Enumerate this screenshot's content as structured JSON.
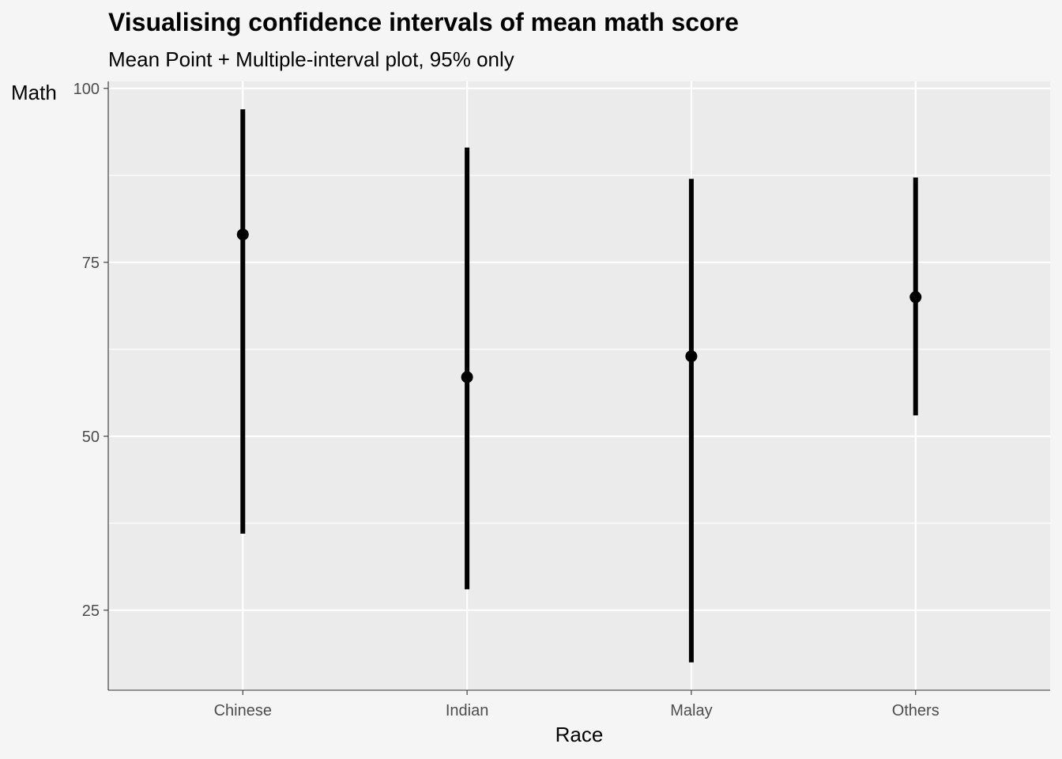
{
  "chart_data": {
    "type": "errorbar",
    "title": "Visualising confidence intervals of mean math score",
    "subtitle": "Mean Point + Multiple-interval plot, 95% only",
    "xlabel": "Race",
    "ylabel": "Math",
    "categories": [
      "Chinese",
      "Indian",
      "Malay",
      "Others"
    ],
    "means": [
      79.0,
      58.5,
      61.5,
      70.0
    ],
    "lower_95": [
      36.0,
      28.0,
      17.5,
      53.0
    ],
    "upper_95": [
      97.0,
      91.5,
      87.0,
      87.2
    ],
    "ylim": [
      13.5,
      101.0
    ],
    "yticks": [
      25,
      50,
      75,
      100
    ],
    "grid": true,
    "legend": "none",
    "colors": {
      "panel": "#ebebeb",
      "background": "#f5f5f5",
      "grid": "#ffffff",
      "marks": "#000000"
    }
  }
}
